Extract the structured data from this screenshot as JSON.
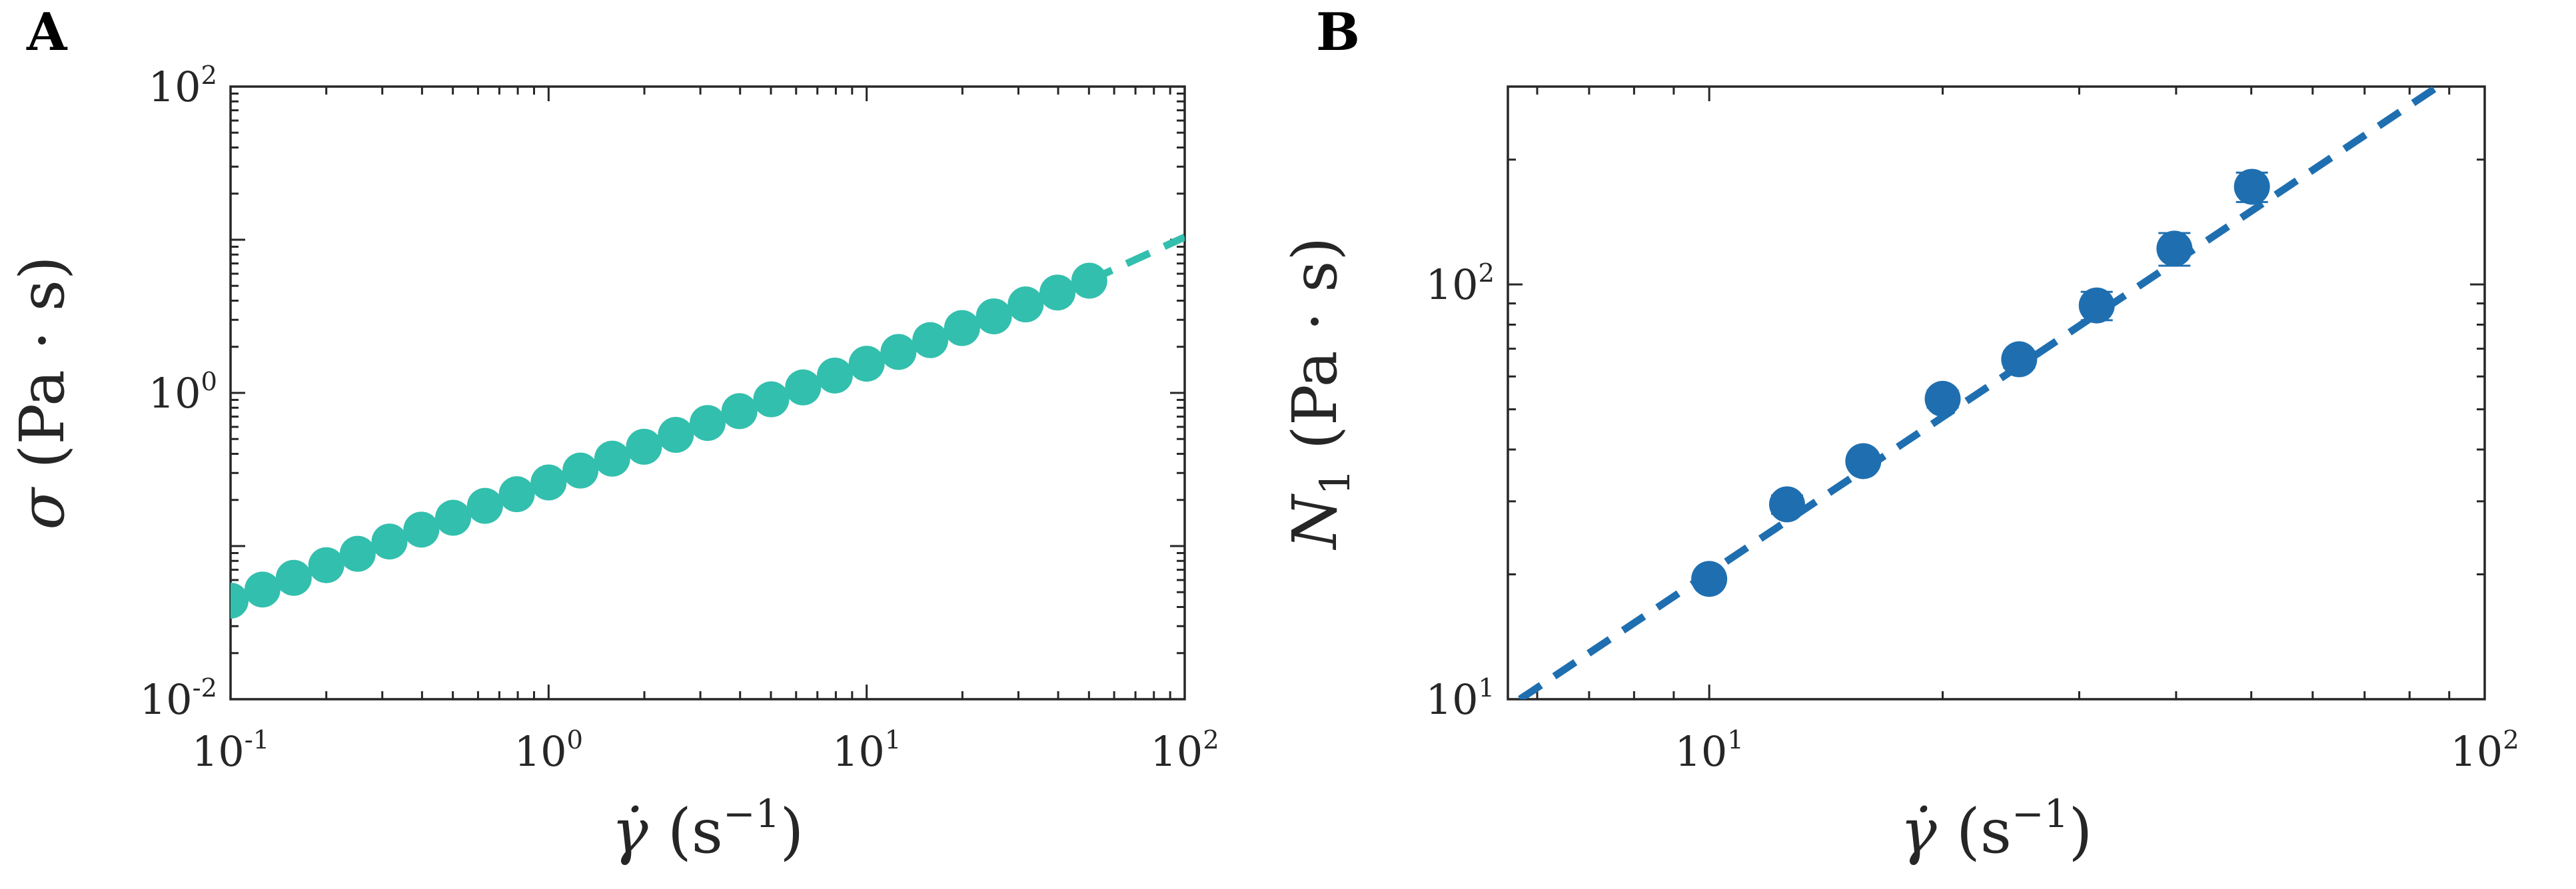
{
  "chart_data": [
    {
      "panel": "A",
      "type": "scatter",
      "xscale": "log",
      "yscale": "log",
      "xlim": [
        0.1,
        100
      ],
      "ylim": [
        0.01,
        100
      ],
      "xticks": [
        0.1,
        1,
        10,
        100
      ],
      "yticks": [
        0.01,
        1,
        100
      ],
      "xtick_labels": [
        {
          "base": "10",
          "exp": "-1"
        },
        {
          "base": "10",
          "exp": "0"
        },
        {
          "base": "10",
          "exp": "1"
        },
        {
          "base": "10",
          "exp": "2"
        }
      ],
      "ytick_labels": [
        {
          "base": "10",
          "exp": "-2"
        },
        {
          "base": "10",
          "exp": "0"
        },
        {
          "base": "10",
          "exp": "2"
        }
      ],
      "xlabel": {
        "symbol": "γ̇",
        "units": "(s",
        "units_exp": "−1",
        "close": ")"
      },
      "ylabel": {
        "symbol": "σ",
        "units": "(Pa · s)"
      },
      "color": "#33bfad",
      "series": [
        {
          "name": "data",
          "x": [
            0.1,
            0.126,
            0.158,
            0.2,
            0.251,
            0.316,
            0.398,
            0.501,
            0.631,
            0.794,
            1.0,
            1.259,
            1.585,
            1.995,
            2.512,
            3.162,
            3.981,
            5.012,
            6.31,
            7.943,
            10.0,
            12.59,
            15.85,
            19.95,
            25.12,
            31.62,
            39.81,
            50.12
          ],
          "y": [
            0.044,
            0.052,
            0.062,
            0.075,
            0.089,
            0.107,
            0.128,
            0.153,
            0.183,
            0.218,
            0.26,
            0.311,
            0.372,
            0.445,
            0.532,
            0.636,
            0.76,
            0.908,
            1.086,
            1.298,
            1.55,
            1.85,
            2.21,
            2.65,
            3.16,
            3.78,
            4.52,
            5.4
          ]
        },
        {
          "name": "fit",
          "style": "dashed",
          "x": [
            50,
            100
          ],
          "y": [
            5.4,
            10.4
          ]
        }
      ]
    },
    {
      "panel": "B",
      "type": "scatter",
      "xscale": "log",
      "yscale": "log",
      "xlim": [
        5.5,
        100
      ],
      "ylim": [
        10,
        300
      ],
      "xticks": [
        10,
        100
      ],
      "yticks": [
        10,
        100
      ],
      "xtick_labels": [
        {
          "base": "10",
          "exp": "1"
        },
        {
          "base": "10",
          "exp": "2"
        }
      ],
      "ytick_labels": [
        {
          "base": "10",
          "exp": "1"
        },
        {
          "base": "10",
          "exp": "2"
        }
      ],
      "xlabel": {
        "symbol": "γ̇",
        "units": "(s",
        "units_exp": "−1",
        "close": ")"
      },
      "ylabel": {
        "symbol": "N",
        "subscript": "1",
        "units": "(Pa · s)"
      },
      "color": "#1f6fb0",
      "series": [
        {
          "name": "data",
          "x": [
            10,
            12.6,
            15.8,
            20,
            25.1,
            31.6,
            39.8,
            50.1
          ],
          "y": [
            19.5,
            29.5,
            37.5,
            53,
            66,
            89,
            122,
            172
          ],
          "yerr": [
            0.5,
            1.5,
            1.5,
            2.5,
            3,
            7,
            11,
            14
          ]
        },
        {
          "name": "fit",
          "style": "dashed",
          "x": [
            5.7,
            87
          ],
          "y": [
            10,
            300
          ]
        }
      ]
    }
  ]
}
